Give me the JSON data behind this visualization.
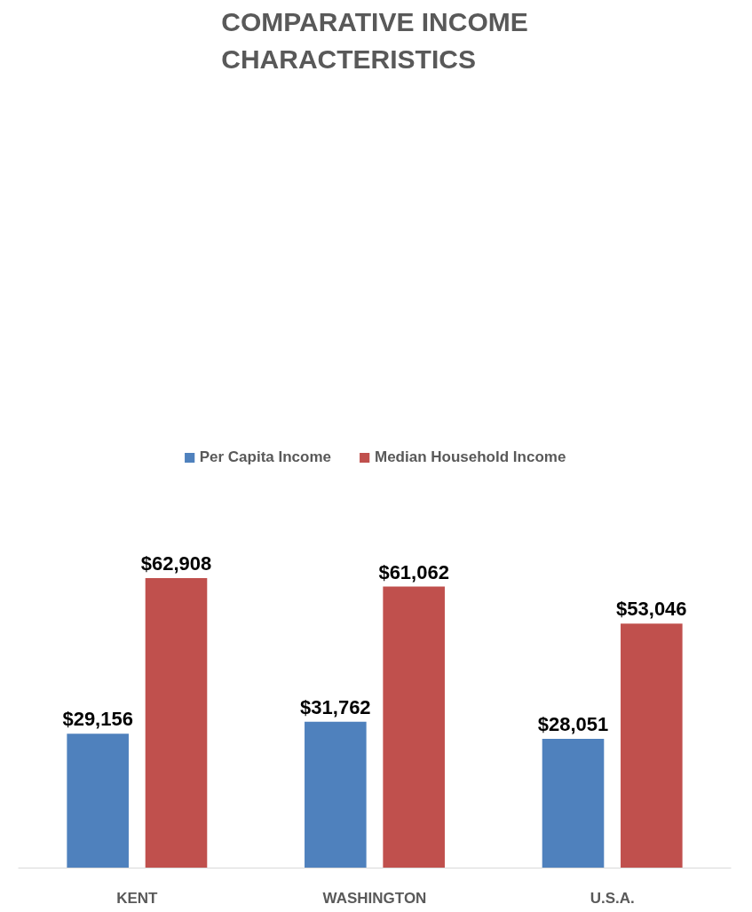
{
  "chart_data": {
    "type": "bar",
    "title": "COMPARATIVE INCOME CHARACTERISTICS",
    "categories": [
      "KENT",
      "WASHINGTON",
      "U.S.A."
    ],
    "grid": false,
    "legend": "top",
    "series": [
      {
        "name": "Per Capita Income",
        "color": "#4f81bd",
        "values": [
          29156,
          31762,
          28051
        ],
        "value_labels": [
          "$29,156",
          "$31,762",
          "$28,051"
        ]
      },
      {
        "name": "Median Household Income",
        "color": "#c0504d",
        "values": [
          62908,
          61062,
          53046
        ],
        "value_labels": [
          "$62,908",
          "$61,062",
          "$53,046"
        ]
      }
    ]
  }
}
